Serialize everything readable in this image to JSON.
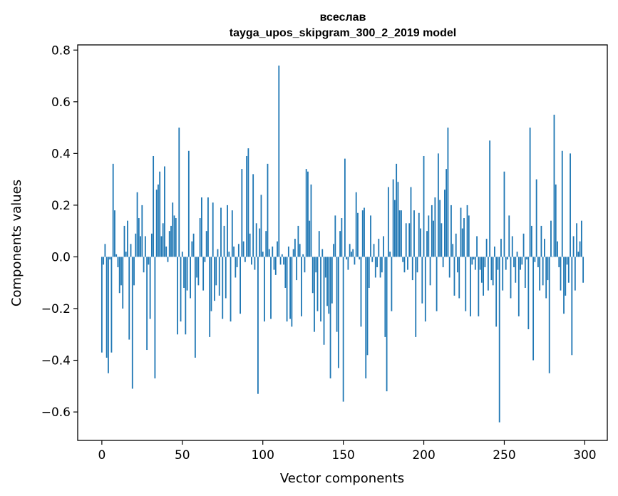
{
  "chart_data": {
    "type": "bar",
    "title": "всеслав",
    "subtitle": "tayga_upos_skipgram_300_2_2019 model",
    "xlabel": "Vector components",
    "ylabel": "Components values",
    "xlim": [
      -15,
      314
    ],
    "ylim": [
      -0.71,
      0.82
    ],
    "xticks": [
      0,
      50,
      100,
      150,
      200,
      250,
      300
    ],
    "yticks": [
      -0.6,
      -0.4,
      -0.2,
      0.0,
      0.2,
      0.4,
      0.6,
      0.8
    ],
    "ytick_labels": [
      "−0.6",
      "−0.4",
      "−0.2",
      "0.0",
      "0.2",
      "0.4",
      "0.6",
      "0.8"
    ],
    "grid": false,
    "bar_color": "#1f77b4",
    "x": "0..299",
    "values": [
      -0.37,
      -0.03,
      0.05,
      -0.39,
      -0.45,
      -0.01,
      -0.37,
      0.36,
      0.18,
      0.01,
      -0.04,
      -0.14,
      -0.11,
      -0.2,
      0.12,
      0.02,
      0.14,
      -0.32,
      0.05,
      -0.51,
      -0.11,
      0.09,
      0.25,
      0.15,
      0.08,
      0.2,
      -0.06,
      0.08,
      -0.36,
      -0.03,
      -0.24,
      0.09,
      0.39,
      -0.47,
      0.26,
      0.28,
      0.33,
      0.08,
      0.13,
      0.35,
      0.04,
      -0.02,
      0.1,
      0.12,
      0.21,
      0.16,
      0.15,
      -0.3,
      0.5,
      -0.25,
      0.02,
      -0.12,
      -0.3,
      -0.13,
      0.41,
      -0.16,
      0.06,
      0.09,
      -0.39,
      -0.08,
      -0.11,
      0.15,
      0.23,
      -0.13,
      -0.02,
      0.1,
      0.23,
      -0.31,
      -0.21,
      0.21,
      -0.17,
      -0.11,
      0.03,
      -0.15,
      0.19,
      -0.24,
      0.12,
      -0.16,
      0.2,
      0.02,
      -0.25,
      0.18,
      0.04,
      -0.08,
      -0.04,
      0.05,
      -0.22,
      0.34,
      0.06,
      -0.02,
      0.39,
      0.42,
      0.09,
      -0.03,
      0.32,
      -0.05,
      0.13,
      -0.53,
      0.11,
      0.24,
      0.02,
      -0.25,
      0.1,
      0.36,
      0.03,
      -0.24,
      0.04,
      -0.05,
      -0.07,
      0.06,
      0.74,
      -0.03,
      0.01,
      -0.03,
      -0.12,
      -0.25,
      0.04,
      -0.24,
      -0.27,
      0.03,
      0.07,
      -0.09,
      0.12,
      0.05,
      -0.23,
      0.01,
      -0.06,
      0.34,
      0.33,
      0.14,
      0.28,
      -0.14,
      -0.29,
      -0.06,
      -0.21,
      0.1,
      -0.25,
      0.03,
      -0.34,
      -0.08,
      -0.19,
      -0.22,
      -0.47,
      -0.18,
      0.05,
      0.16,
      -0.29,
      -0.43,
      0.1,
      0.15,
      -0.56,
      0.38,
      -0.01,
      -0.05,
      0.05,
      0.02,
      0.03,
      -0.03,
      0.25,
      0.17,
      -0.01,
      -0.27,
      0.18,
      0.19,
      -0.47,
      -0.38,
      -0.12,
      0.16,
      -0.02,
      0.05,
      -0.08,
      -0.04,
      0.07,
      -0.08,
      -0.06,
      0.08,
      -0.31,
      -0.52,
      0.27,
      0.02,
      -0.21,
      0.3,
      0.22,
      0.36,
      0.29,
      0.18,
      0.18,
      -0.02,
      -0.06,
      0.13,
      -0.05,
      0.13,
      0.27,
      -0.09,
      0.18,
      -0.31,
      -0.06,
      0.17,
      0.11,
      -0.18,
      0.39,
      -0.25,
      0.1,
      0.16,
      -0.11,
      0.2,
      0.14,
      0.23,
      -0.21,
      0.4,
      0.22,
      0.13,
      -0.04,
      0.26,
      0.34,
      0.5,
      -0.08,
      0.2,
      0.05,
      -0.15,
      0.09,
      -0.06,
      -0.16,
      0.19,
      0.11,
      0.15,
      -0.21,
      0.2,
      0.16,
      -0.23,
      -0.03,
      -0.01,
      -0.05,
      0.08,
      -0.23,
      -0.05,
      -0.1,
      -0.15,
      -0.04,
      0.07,
      -0.13,
      0.45,
      -0.09,
      -0.11,
      0.04,
      -0.27,
      -0.05,
      -0.64,
      0.07,
      -0.13,
      0.33,
      -0.05,
      -0.01,
      0.16,
      -0.16,
      0.08,
      -0.04,
      -0.1,
      0.02,
      -0.23,
      -0.05,
      -0.03,
      0.09,
      -0.12,
      -0.01,
      -0.28,
      0.5,
      0.12,
      -0.4,
      -0.02,
      0.3,
      -0.04,
      -0.13,
      0.12,
      -0.11,
      0.07,
      -0.16,
      -0.09,
      -0.45,
      0.14,
      0.0,
      0.55,
      0.28,
      0.06,
      -0.04,
      -0.13,
      0.41,
      -0.22,
      -0.15,
      -0.03,
      -0.1,
      0.4,
      -0.38,
      0.08,
      -0.13,
      0.13,
      0.02,
      0.06,
      0.14,
      -0.1
    ]
  }
}
